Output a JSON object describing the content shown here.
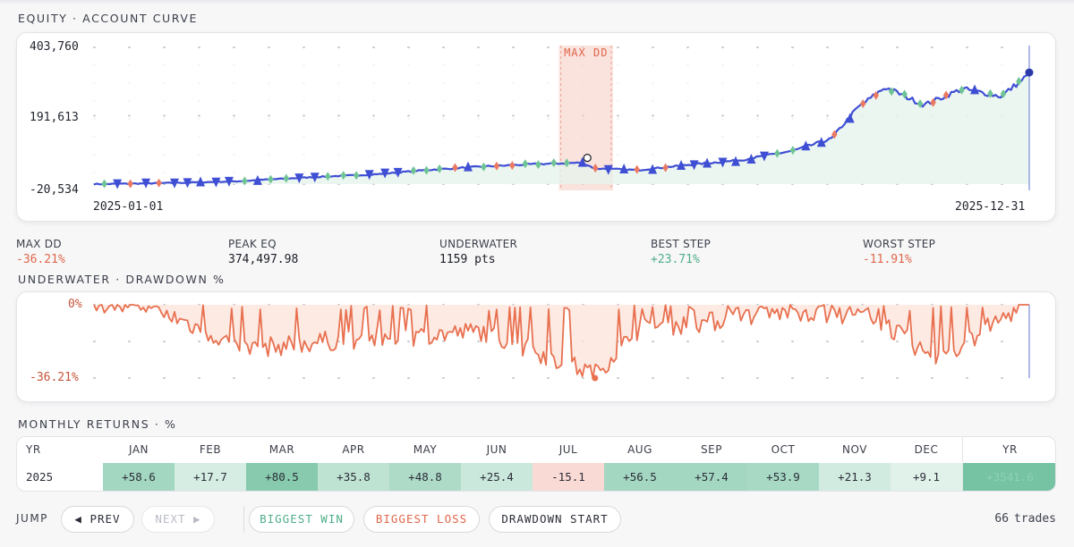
{
  "equity": {
    "section_title": "EQUITY · ACCOUNT CURVE",
    "y_top_label": "403,760",
    "y_mid_label": "191,613",
    "y_bot_label": "-20,534",
    "x_start_label": "2025-01-01",
    "x_end_label": "2025-12-31",
    "maxdd_label": "MAX DD"
  },
  "stats": [
    {
      "label": "MAX DD",
      "value": "-36.21%"
    },
    {
      "label": "PEAK EQ",
      "value": "374,497.98"
    },
    {
      "label": "UNDERWATER",
      "value": "1159 pts"
    },
    {
      "label": "BEST STEP",
      "value": "+23.71%"
    },
    {
      "label": "WORST STEP",
      "value": "-11.91%"
    }
  ],
  "underwater": {
    "section_title": "UNDERWATER · DRAWDOWN %",
    "top_label": "0%",
    "bottom_label": "-36.21%"
  },
  "monthly": {
    "section_title": "MONTHLY RETURNS · %",
    "headers": [
      "YR",
      "JAN",
      "FEB",
      "MAR",
      "APR",
      "MAY",
      "JUN",
      "JUL",
      "AUG",
      "SEP",
      "OCT",
      "NOV",
      "DEC",
      "YR"
    ],
    "year": "2025",
    "values": [
      "+58.6",
      "+17.7",
      "+80.5",
      "+35.8",
      "+48.8",
      "+25.4",
      "-15.1",
      "+56.5",
      "+57.4",
      "+53.9",
      "+21.3",
      "+9.1"
    ],
    "total": "+3541.6"
  },
  "nav": {
    "jump_label": "JUMP",
    "prev": "◀ PREV",
    "next": "NEXT ▶",
    "biggest_win": "BIGGEST WIN",
    "biggest_loss": "BIGGEST LOSS",
    "drawdown_start": "DRAWDOWN START",
    "trades_count": "66",
    "trades_label": "trades"
  },
  "colors": {
    "line": "#3f4fd4",
    "win_marker": "#6fc495",
    "loss_marker": "#ec7a63",
    "drawdown": "#e8704f",
    "maxdd_band": "#f6cfc6"
  },
  "chart_data": [
    {
      "type": "line",
      "title": "EQUITY · ACCOUNT CURVE",
      "x_range": [
        "2025-01-01",
        "2025-12-31"
      ],
      "ylim": [
        -20534,
        403760
      ],
      "yticks": [
        403760,
        191613,
        -20534
      ],
      "x": [
        "2025-01-01",
        "2025-01-20",
        "2025-02-05",
        "2025-02-25",
        "2025-03-15",
        "2025-04-01",
        "2025-04-20",
        "2025-05-10",
        "2025-05-30",
        "2025-06-20",
        "2025-07-10",
        "2025-07-15",
        "2025-08-01",
        "2025-08-20",
        "2025-09-10",
        "2025-09-30",
        "2025-10-15",
        "2025-10-25",
        "2025-11-05",
        "2025-11-20",
        "2025-12-05",
        "2025-12-20",
        "2025-12-31"
      ],
      "y": [
        -20534,
        -18500,
        -16000,
        -12000,
        -4000,
        3000,
        9500,
        23000,
        33000,
        41000,
        46000,
        28000,
        23000,
        39000,
        54000,
        83000,
        120000,
        215000,
        280000,
        225000,
        275000,
        252000,
        320000
      ],
      "annotations": [
        "MAX DD"
      ]
    },
    {
      "type": "area",
      "title": "UNDERWATER · DRAWDOWN %",
      "ylim": [
        -36.21,
        0
      ],
      "x": [
        "2025-01-01",
        "2025-02-01",
        "2025-03-01",
        "2025-04-01",
        "2025-05-01",
        "2025-06-01",
        "2025-07-15",
        "2025-08-01",
        "2025-09-01",
        "2025-10-01",
        "2025-11-01",
        "2025-11-25",
        "2025-12-31"
      ],
      "y": [
        0,
        -8,
        -24,
        -20,
        -18,
        -15,
        -36.21,
        -14,
        -10,
        -5,
        -8,
        -30,
        0
      ]
    },
    {
      "type": "table",
      "title": "MONTHLY RETURNS · %",
      "columns": [
        "JAN",
        "FEB",
        "MAR",
        "APR",
        "MAY",
        "JUN",
        "JUL",
        "AUG",
        "SEP",
        "OCT",
        "NOV",
        "DEC",
        "YR"
      ],
      "rows": [
        {
          "year": "2025",
          "values": [
            58.6,
            17.7,
            80.5,
            35.8,
            48.8,
            25.4,
            -15.1,
            56.5,
            57.4,
            53.9,
            21.3,
            9.1,
            3541.6
          ]
        }
      ]
    }
  ]
}
